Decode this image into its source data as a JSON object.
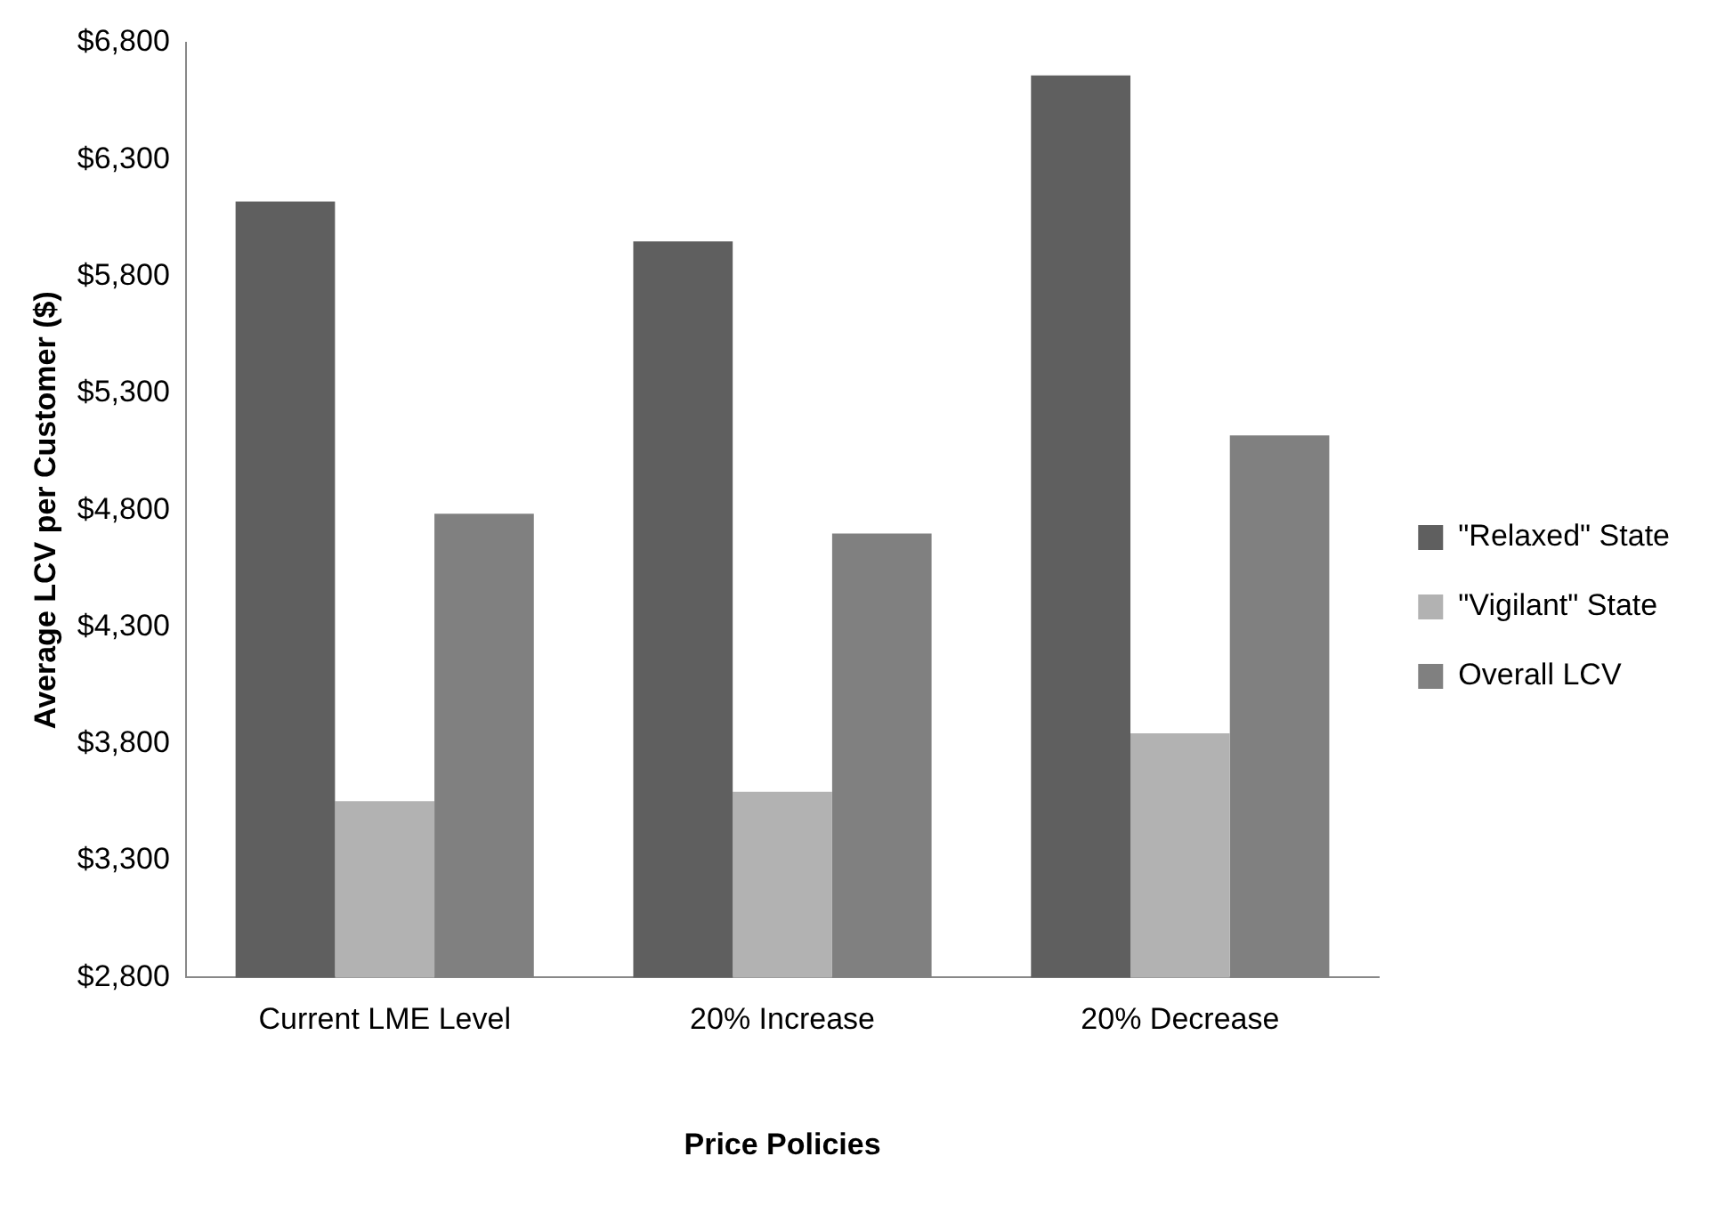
{
  "chart_data": {
    "type": "bar",
    "xlabel": "Price Policies",
    "ylabel": "Average LCV per Customer ($)",
    "categories": [
      "Current LME Level",
      "20% Increase",
      "20% Decrease"
    ],
    "series": [
      {
        "name": "\"Relaxed\" State",
        "color": "#5f5f5f",
        "values": [
          6120,
          5950,
          6660
        ]
      },
      {
        "name": "\"Vigilant\" State",
        "color": "#b2b2b2",
        "values": [
          3555,
          3595,
          3845
        ]
      },
      {
        "name": "Overall LCV",
        "color": "#808080",
        "values": [
          4785,
          4700,
          5120
        ]
      }
    ],
    "ylim": [
      2800,
      6800
    ],
    "yticks": [
      {
        "value": 2800,
        "label": "$2,800"
      },
      {
        "value": 3300,
        "label": "$3,300"
      },
      {
        "value": 3800,
        "label": "$3,800"
      },
      {
        "value": 4300,
        "label": "$4,300"
      },
      {
        "value": 4800,
        "label": "$4,800"
      },
      {
        "value": 5300,
        "label": "$5,300"
      },
      {
        "value": 5800,
        "label": "$5,800"
      },
      {
        "value": 6300,
        "label": "$6,300"
      },
      {
        "value": 6800,
        "label": "$6,800"
      }
    ],
    "grid": false,
    "legend": "right"
  }
}
